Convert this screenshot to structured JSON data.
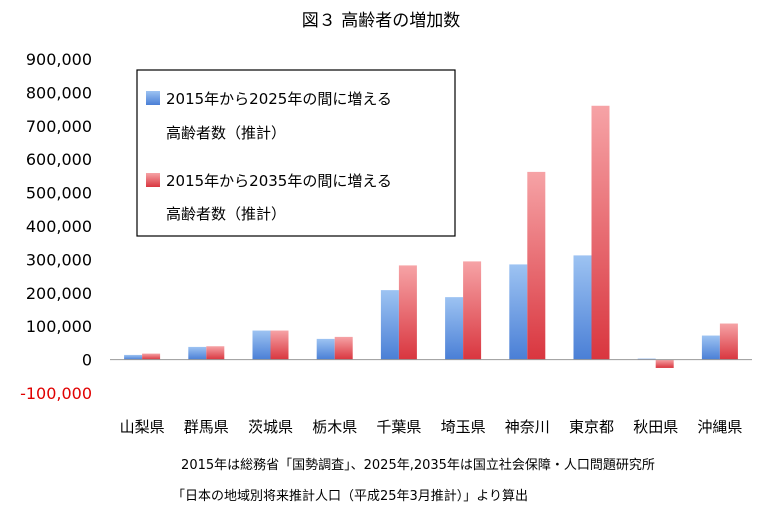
{
  "chart_data": {
    "type": "bar",
    "title": "図３ 高齢者の増加数",
    "categories": [
      "山梨県",
      "群馬県",
      "茨城県",
      "栃木県",
      "千葉県",
      "埼玉県",
      "神奈川",
      "東京都",
      "秋田県",
      "沖縄県"
    ],
    "series": [
      {
        "name_line1": "2015年から2025年の間に増える",
        "name_line2": "高齢者数（推計）",
        "color_top": "#9dc3f2",
        "color_bottom": "#4a7fd6",
        "values": [
          14000,
          38000,
          87000,
          62000,
          208000,
          187000,
          285000,
          312000,
          3000,
          72000
        ]
      },
      {
        "name_line1": "2015年から2035年の間に増える",
        "name_line2": "高齢者数（推計）",
        "color_top": "#f6a3a6",
        "color_bottom": "#d9363f",
        "values": [
          18000,
          40000,
          87000,
          68000,
          282000,
          294000,
          562000,
          760000,
          -25000,
          108000
        ]
      }
    ],
    "ylim": [
      -100000,
      900000
    ],
    "yticks": [
      {
        "value": 900000,
        "label": "900,000",
        "color": "#000000"
      },
      {
        "value": 800000,
        "label": "800,000",
        "color": "#000000"
      },
      {
        "value": 700000,
        "label": "700,000",
        "color": "#000000"
      },
      {
        "value": 600000,
        "label": "600,000",
        "color": "#000000"
      },
      {
        "value": 500000,
        "label": "500,000",
        "color": "#000000"
      },
      {
        "value": 400000,
        "label": "400,000",
        "color": "#000000"
      },
      {
        "value": 300000,
        "label": "300,000",
        "color": "#000000"
      },
      {
        "value": 200000,
        "label": "200,000",
        "color": "#000000"
      },
      {
        "value": 100000,
        "label": "100,000",
        "color": "#000000"
      },
      {
        "value": 0,
        "label": "0",
        "color": "#000000"
      },
      {
        "value": -100000,
        "label": "-100,000",
        "color": "#e00000"
      }
    ],
    "grid": false,
    "legend_position": "top-left",
    "notes": [
      "2015年は総務省「国勢調査」、2025年,2035年は国立社会保障・人口問題研究所",
      "「日本の地域別将来推計人口（平成25年3月推計）」より算出"
    ]
  }
}
